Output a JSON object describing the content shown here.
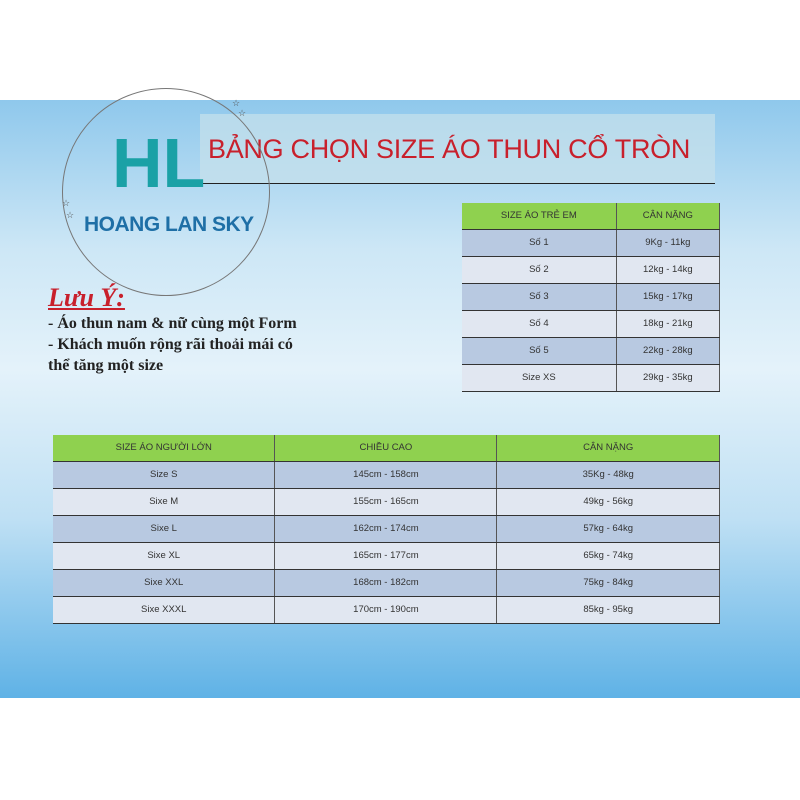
{
  "title": "BẢNG CHỌN SIZE ÁO THUN CỔ TRÒN",
  "brand": {
    "logo_letters": "HL",
    "name": "HOANG LAN SKY"
  },
  "note": {
    "heading": "Lưu Ý:",
    "lines": [
      "- Áo thun nam & nữ cùng một Form",
      "- Khách muốn rộng rãi thoải mái có",
      "thể tăng một size"
    ]
  },
  "kids_table": {
    "headers": [
      "SIZE ÁO TRẺ EM",
      "CÂN NẶNG"
    ],
    "rows": [
      [
        "Số 1",
        "9Kg - 11kg"
      ],
      [
        "Số 2",
        "12kg - 14kg"
      ],
      [
        "Số 3",
        "15kg - 17kg"
      ],
      [
        "Số 4",
        "18kg - 21kg"
      ],
      [
        "Số 5",
        "22kg - 28kg"
      ],
      [
        "Size XS",
        "29kg - 35kg"
      ]
    ]
  },
  "adult_table": {
    "headers": [
      "SIZE ÁO NGƯỜI LỚN",
      "CHIỀU CAO",
      "CÂN NẶNG"
    ],
    "rows": [
      [
        "Size S",
        "145cm - 158cm",
        "35Kg - 48kg"
      ],
      [
        "Sixe M",
        "155cm - 165cm",
        "49kg - 56kg"
      ],
      [
        "Sixe L",
        "162cm - 174cm",
        "57kg - 64kg"
      ],
      [
        "Sixe XL",
        "165cm - 177cm",
        "65kg - 74kg"
      ],
      [
        "Sixe XXL",
        "168cm - 182cm",
        "75kg - 84kg"
      ],
      [
        "Sixe XXXL",
        "170cm - 190cm",
        "85kg - 95kg"
      ]
    ]
  },
  "colors": {
    "title": "#c8202c",
    "header_green": "#8fd14f",
    "logo": "#1aa1a6"
  }
}
